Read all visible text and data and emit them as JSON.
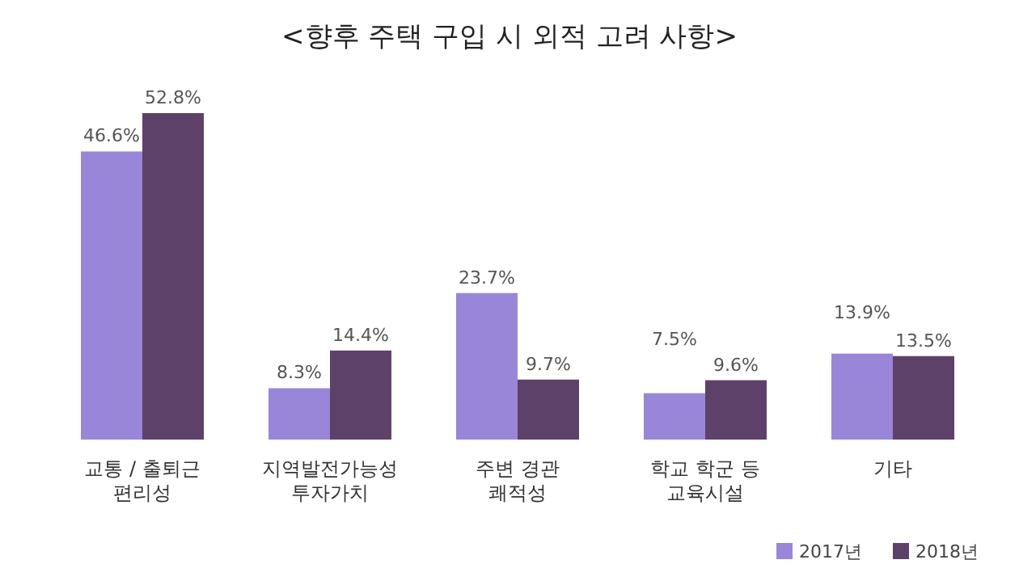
{
  "chart_data": {
    "type": "bar",
    "title": "<향후 주택 구입 시 외적 고려 사항>",
    "categories": [
      "교통 / 출퇴근\n편리성",
      "지역발전가능성\n투자가치",
      "주변 경관\n쾌적성",
      "학교 학군 등\n교육시설",
      "기타"
    ],
    "series": [
      {
        "name": "2017년",
        "color": "#9a86d8",
        "values": [
          46.6,
          8.3,
          23.7,
          7.5,
          13.9
        ],
        "value_labels": [
          "46.6%",
          "8.3%",
          "23.7%",
          "7.5%",
          "13.9%"
        ]
      },
      {
        "name": "2018년",
        "color": "#5e4168",
        "values": [
          52.8,
          14.4,
          9.7,
          9.6,
          13.5
        ],
        "value_labels": [
          "52.8%",
          "14.4%",
          "9.7%",
          "9.6%",
          "13.5%"
        ]
      }
    ],
    "legend": "bottom right",
    "grid": false,
    "relative": false
  }
}
